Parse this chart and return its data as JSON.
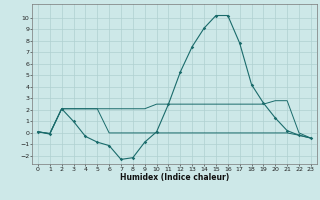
{
  "xlabel": "Humidex (Indice chaleur)",
  "xlim": [
    -0.5,
    23.5
  ],
  "ylim": [
    -2.7,
    11.2
  ],
  "yticks": [
    -2,
    -1,
    0,
    1,
    2,
    3,
    4,
    5,
    6,
    7,
    8,
    9,
    10
  ],
  "xticks": [
    0,
    1,
    2,
    3,
    4,
    5,
    6,
    7,
    8,
    9,
    10,
    11,
    12,
    13,
    14,
    15,
    16,
    17,
    18,
    19,
    20,
    21,
    22,
    23
  ],
  "bg_color": "#cde8e8",
  "grid_color": "#b0d0d0",
  "line_color": "#1a6b6b",
  "main_x": [
    0,
    1,
    2,
    3,
    4,
    5,
    6,
    7,
    8,
    9,
    10,
    11,
    12,
    13,
    14,
    15,
    16,
    17,
    18,
    19,
    20,
    21,
    22,
    23
  ],
  "main_y": [
    0.1,
    -0.1,
    2.1,
    1.0,
    -0.3,
    -0.8,
    -1.1,
    -2.3,
    -2.15,
    -0.8,
    0.1,
    2.5,
    5.3,
    7.5,
    9.1,
    10.2,
    10.2,
    7.8,
    4.2,
    2.6,
    1.3,
    0.2,
    -0.2,
    -0.45
  ],
  "upper_x": [
    0,
    1,
    2,
    3,
    4,
    5,
    6,
    7,
    8,
    9,
    10,
    11,
    12,
    13,
    14,
    15,
    16,
    17,
    18,
    19,
    20,
    21,
    22,
    23
  ],
  "upper_y": [
    0.1,
    -0.05,
    2.1,
    2.1,
    2.1,
    2.1,
    2.1,
    2.1,
    2.1,
    2.1,
    2.5,
    2.5,
    2.5,
    2.5,
    2.5,
    2.5,
    2.5,
    2.5,
    2.5,
    2.5,
    2.8,
    2.8,
    0.0,
    -0.45
  ],
  "lower_x": [
    0,
    1,
    2,
    3,
    4,
    5,
    6,
    7,
    8,
    9,
    10,
    11,
    12,
    13,
    14,
    15,
    16,
    17,
    18,
    19,
    20,
    21,
    22,
    23
  ],
  "lower_y": [
    0.1,
    -0.05,
    2.1,
    2.1,
    2.1,
    2.1,
    0.0,
    0.0,
    0.0,
    0.0,
    0.0,
    0.0,
    0.0,
    0.0,
    0.0,
    0.0,
    0.0,
    0.0,
    0.0,
    0.0,
    0.0,
    0.0,
    -0.2,
    -0.45
  ]
}
